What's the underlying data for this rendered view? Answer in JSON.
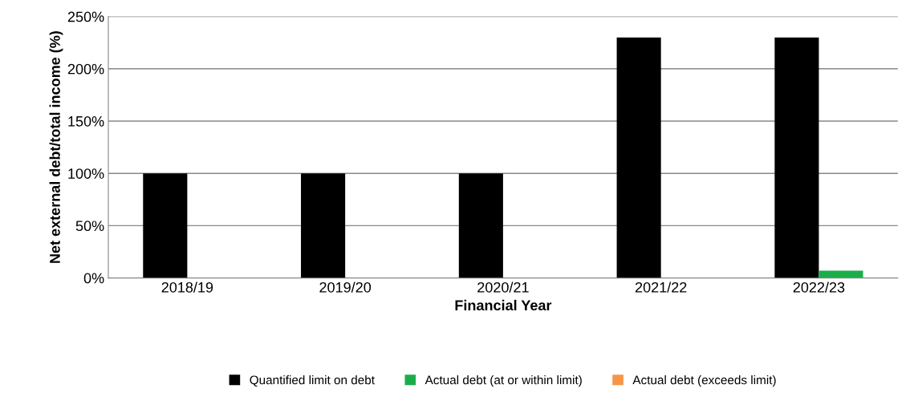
{
  "chart_data": {
    "type": "bar",
    "xlabel": "Financial Year",
    "ylabel": "Net external debt/total income (%)",
    "categories": [
      "2018/19",
      "2019/20",
      "2020/21",
      "2021/22",
      "2022/23"
    ],
    "series": [
      {
        "name": "Quantified limit on debt",
        "color": "#000000",
        "values": [
          100,
          100,
          100,
          230,
          230
        ]
      },
      {
        "name": "Actual debt (at or within limit)",
        "color": "#1aae4a",
        "values": [
          null,
          null,
          null,
          null,
          7
        ]
      },
      {
        "name": "Actual debt (exceeds limit)",
        "color": "#f79646",
        "values": [
          null,
          null,
          null,
          null,
          null
        ]
      }
    ],
    "ylim": [
      0,
      250
    ],
    "yticks": [
      {
        "value": 0,
        "label": "0%"
      },
      {
        "value": 50,
        "label": "50%"
      },
      {
        "value": 100,
        "label": "100%"
      },
      {
        "value": 150,
        "label": "150%"
      },
      {
        "value": 200,
        "label": "200%"
      },
      {
        "value": 250,
        "label": "250%"
      }
    ],
    "grid": "y",
    "legend": "bottom"
  }
}
